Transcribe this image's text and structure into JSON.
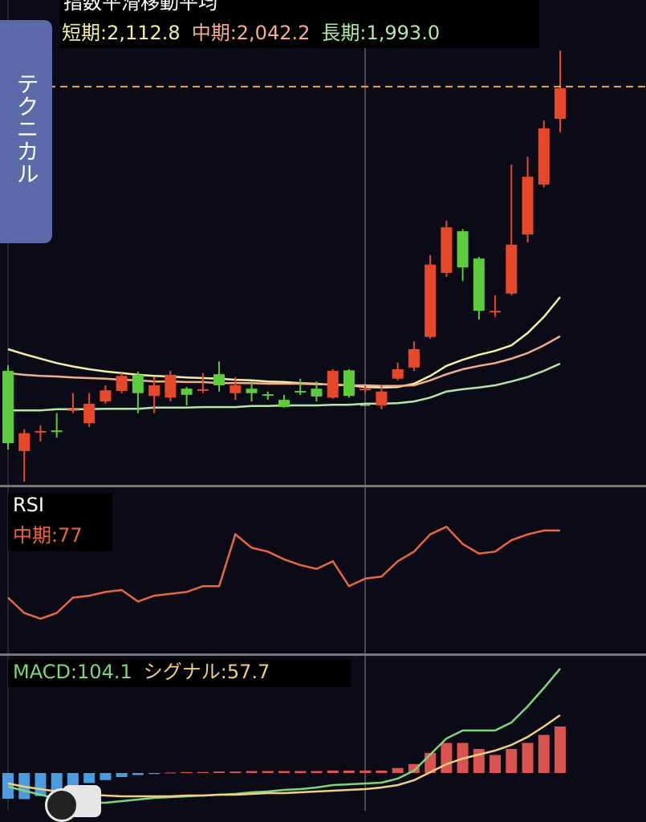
{
  "tab_label": "テクニカル",
  "chart_data": [
    {
      "type": "candlestick",
      "title": "指数平滑移動平均",
      "open": [
        1980,
        1836,
        1871,
        1873,
        1910,
        1886,
        1925,
        1944,
        1973,
        1935,
        1932,
        1948,
        1946,
        1974,
        1940,
        1948,
        1938,
        1928,
        1944,
        1948,
        1932,
        1981,
        1947,
        1918,
        1966,
        1986,
        2041,
        2156,
        2231,
        2182,
        2087,
        2119,
        2225,
        2315,
        2433
      ],
      "high": [
        1990,
        1875,
        1882,
        1904,
        1940,
        1940,
        1954,
        1976,
        1979,
        1969,
        1980,
        1951,
        1976,
        1997,
        1969,
        1961,
        1943,
        1937,
        1966,
        1961,
        1983,
        1983,
        1954,
        1954,
        1995,
        2033,
        2188,
        2250,
        2235,
        2185,
        2116,
        2351,
        2365,
        2430,
        2556
      ],
      "low": [
        1839,
        1781,
        1853,
        1860,
        1904,
        1879,
        1921,
        1940,
        1904,
        1904,
        1925,
        1918,
        1940,
        1943,
        1928,
        1925,
        1928,
        1914,
        1937,
        1925,
        1930,
        1932,
        1940,
        1911,
        1963,
        1980,
        2038,
        2149,
        2142,
        2072,
        2077,
        2116,
        2211,
        2310,
        2409
      ],
      "close": [
        1850,
        1868,
        1872,
        1872,
        1911,
        1921,
        1945,
        1971,
        1940,
        1954,
        1973,
        1937,
        1947,
        1954,
        1954,
        1940,
        1937,
        1915,
        1943,
        1934,
        1980,
        1935,
        1948,
        1943,
        1983,
        2019,
        2171,
        2238,
        2166,
        2088,
        2088,
        2207,
        2329,
        2416,
        2488
      ],
      "up_color": "#e8482a",
      "down_color": "#5ccb3c",
      "lines": [
        {
          "name": "短期:2,112.8",
          "color": "#f4efa2",
          "values": [
            2019,
            2010,
            2002,
            1994,
            1988,
            1983,
            1979,
            1976,
            1973,
            1971,
            1970,
            1968,
            1967,
            1966,
            1964,
            1963,
            1961,
            1960,
            1958,
            1957,
            1955,
            1954,
            1951,
            1950,
            1951,
            1957,
            1971,
            1989,
            2000,
            2009,
            2016,
            2026,
            2048,
            2077,
            2112.8
          ]
        },
        {
          "name": "中期:2,042.2",
          "color": "#f2ae8e",
          "values": [
            1976,
            1973,
            1971,
            1970,
            1968,
            1967,
            1966,
            1964,
            1963,
            1961,
            1961,
            1960,
            1960,
            1958,
            1958,
            1958,
            1957,
            1957,
            1957,
            1956,
            1956,
            1954,
            1954,
            1953,
            1953,
            1954,
            1963,
            1974,
            1983,
            1989,
            1994,
            2002,
            2012,
            2026,
            2042.2
          ]
        },
        {
          "name": "長期:1,993.0",
          "color": "#b5e6a8",
          "values": [
            1909,
            1909,
            1909,
            1911,
            1911,
            1911,
            1912,
            1912,
            1912,
            1914,
            1914,
            1914,
            1915,
            1915,
            1915,
            1917,
            1917,
            1918,
            1918,
            1918,
            1919,
            1919,
            1921,
            1921,
            1922,
            1925,
            1932,
            1943,
            1947,
            1950,
            1954,
            1961,
            1969,
            1980,
            1993.0
          ]
        }
      ],
      "price_line": 2491,
      "price_line_color": "#f0a830",
      "ylim": [
        1773.7,
        2646.7
      ]
    },
    {
      "type": "line",
      "title": "RSI",
      "series": [
        {
          "name": "中期:77",
          "color": "#e8673f",
          "values": [
            42,
            34,
            31,
            34,
            42,
            43,
            45,
            46,
            40,
            43,
            44,
            45,
            48,
            48,
            75,
            68,
            66,
            62,
            59,
            57,
            61,
            48,
            52,
            53,
            61,
            66,
            75,
            79,
            70,
            65,
            66,
            72,
            75,
            77,
            77
          ]
        }
      ],
      "ylim": [
        12.5,
        100
      ]
    },
    {
      "type": "macd",
      "series": [
        {
          "name": "MACD:104.1",
          "color": "#7ed67a",
          "values": [
            -13.6,
            -17.6,
            -21.6,
            -25.6,
            -28,
            -29.6,
            -29.6,
            -28,
            -26.4,
            -24.8,
            -24,
            -23.2,
            -22.4,
            -21.6,
            -20.8,
            -19.2,
            -18.4,
            -16.8,
            -16,
            -14.4,
            -12,
            -11.2,
            -10.4,
            -9.6,
            -5.6,
            2.4,
            18.4,
            34.4,
            42.4,
            42.4,
            42.4,
            50.4,
            66.4,
            84.8,
            104.1
          ]
        },
        {
          "name": "シグナル:57.7",
          "color": "#f0d080",
          "values": [
            -10.4,
            -13.6,
            -16,
            -18.4,
            -20,
            -21.6,
            -22.4,
            -23.2,
            -23.2,
            -23.2,
            -23.2,
            -22.4,
            -22.4,
            -21.6,
            -21.6,
            -20.8,
            -20,
            -20,
            -19.2,
            -18.4,
            -17.6,
            -16.8,
            -16,
            -14.4,
            -12,
            -7.2,
            0.8,
            8.8,
            14.4,
            18.4,
            22.4,
            28,
            36,
            46.4,
            57.7
          ]
        }
      ],
      "histogram": {
        "values": [
          -25.6,
          -26,
          -23,
          -18,
          -12,
          -10,
          -7,
          -4,
          -2,
          -1,
          0.5,
          1,
          1,
          1.5,
          1.5,
          2,
          2,
          2,
          2,
          2,
          2.5,
          2.5,
          2.5,
          2.5,
          5,
          9,
          20,
          30,
          30,
          24,
          18,
          24,
          30,
          38,
          46.4
        ],
        "up_color": "#d9534f",
        "down_color": "#4a9be0"
      },
      "ylim": [
        -37.6,
        117.6
      ]
    }
  ]
}
